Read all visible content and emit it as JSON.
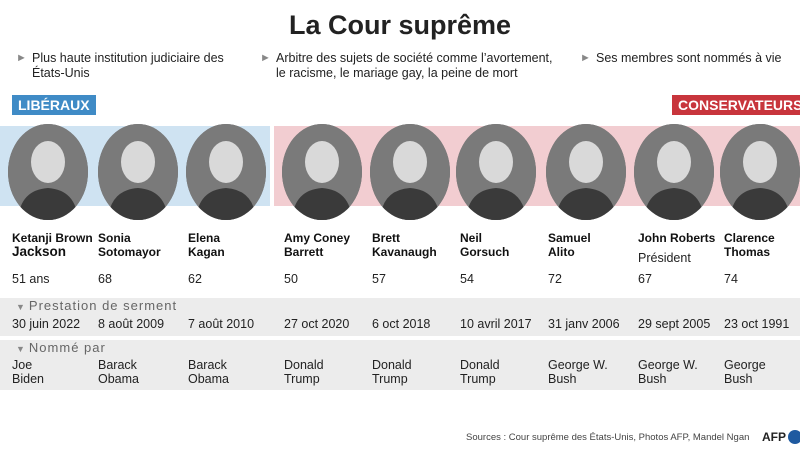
{
  "title": "La Cour suprême",
  "facts": [
    "Plus haute institution judiciaire des États-Unis",
    "Arbitre des sujets de société comme l’avortement, le racisme, le mariage gay, la peine de mort",
    "Ses membres sont nommés à vie"
  ],
  "labels": {
    "liberals": "LIBÉRAUX",
    "conservatives": "CONSERVATEURS"
  },
  "sections": {
    "oath": "Prestation de serment",
    "nominated": "Nommé par"
  },
  "justices": [
    {
      "name1": "Ketanji Brown",
      "name2": "Jackson",
      "age": "51 ans",
      "oath": "30 juin 2022",
      "nom1": "Joe",
      "nom2": "Biden",
      "group": "lib"
    },
    {
      "name1": "Sonia",
      "name2": "Sotomayor",
      "age": "68",
      "oath": "8 août 2009",
      "nom1": "Barack",
      "nom2": "Obama",
      "group": "lib"
    },
    {
      "name1": "Elena",
      "name2": "Kagan",
      "age": "62",
      "oath": "7 août 2010",
      "nom1": "Barack",
      "nom2": "Obama",
      "group": "lib"
    },
    {
      "name1": "Amy Coney",
      "name2": "Barrett",
      "age": "50",
      "oath": "27 oct 2020",
      "nom1": "Donald",
      "nom2": "Trump",
      "group": "con"
    },
    {
      "name1": "Brett",
      "name2": "Kavanaugh",
      "age": "57",
      "oath": "6 oct 2018",
      "nom1": "Donald",
      "nom2": "Trump",
      "group": "con"
    },
    {
      "name1": "Neil",
      "name2": "Gorsuch",
      "age": "54",
      "oath": "10 avril 2017",
      "nom1": "Donald",
      "nom2": "Trump",
      "group": "con"
    },
    {
      "name1": "Samuel",
      "name2": "Alito",
      "age": "72",
      "oath": "31 janv 2006",
      "nom1": "George W.",
      "nom2": "Bush",
      "group": "con"
    },
    {
      "name1": "John Roberts",
      "name2": "",
      "role": "Président",
      "age": "67",
      "oath": "29 sept 2005",
      "nom1": "George W.",
      "nom2": "Bush",
      "group": "con"
    },
    {
      "name1": "Clarence",
      "name2": "Thomas",
      "age": "74",
      "oath": "23 oct 1991",
      "nom1": "George",
      "nom2": "Bush",
      "group": "con"
    }
  ],
  "sources": "Sources : Cour suprême des États-Unis, Photos AFP, Mandel Ngan",
  "logo": "AFP",
  "colors": {
    "liberal": "#3f8bc6",
    "conservative": "#c8353c",
    "liberal_band": "#cfe3f2",
    "conservative_band": "#f2cdd1",
    "row": "#ececec"
  }
}
